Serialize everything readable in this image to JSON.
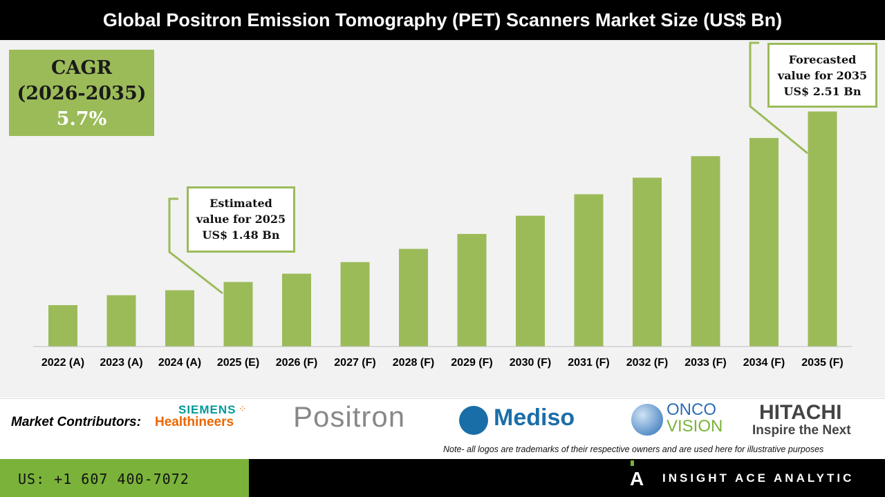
{
  "header": {
    "title": "Global Positron Emission Tomography (PET) Scanners Market Size (US$ Bn)"
  },
  "cagr": {
    "label": "CAGR",
    "period": "(2026-2035)",
    "value": "5.7%"
  },
  "callouts": {
    "estimated": {
      "line1": "Estimated",
      "line2": "value for 2025",
      "line3": "US$ 1.48 Bn"
    },
    "forecast": {
      "line1": "Forecasted",
      "line2": "value for 2035",
      "line3": "US$ 2.51 Bn"
    }
  },
  "chart_data": {
    "type": "bar",
    "title": "Global Positron Emission Tomography (PET) Scanners Market Size (US$ Bn)",
    "categories": [
      "2022 (A)",
      "2023 (A)",
      "2024 (A)",
      "2025 (E)",
      "2026 (F)",
      "2027 (F)",
      "2028 (F)",
      "2029 (F)",
      "2030 (F)",
      "2031 (F)",
      "2032 (F)",
      "2033 (F)",
      "2034 (F)",
      "2035 (F)"
    ],
    "values": [
      1.34,
      1.4,
      1.43,
      1.48,
      1.53,
      1.6,
      1.68,
      1.77,
      1.88,
      2.01,
      2.11,
      2.24,
      2.35,
      2.51
    ],
    "ylim": [
      1.09,
      2.55
    ],
    "grid": false,
    "bar_color": "#9bbb59"
  },
  "contributors": {
    "label": "Market Contributors:",
    "logos": [
      "SIEMENS",
      "Healthineers",
      "Positron",
      "Mediso",
      "ONCO",
      "VISION",
      "HITACHI",
      "Inspire the Next"
    ],
    "note": "Note- all logos are trademarks of their respective owners and are used here for illustrative purposes"
  },
  "footer": {
    "phone": "US: +1 607 400-7072",
    "brand": "INSIGHT ACE ANALYTIC"
  }
}
